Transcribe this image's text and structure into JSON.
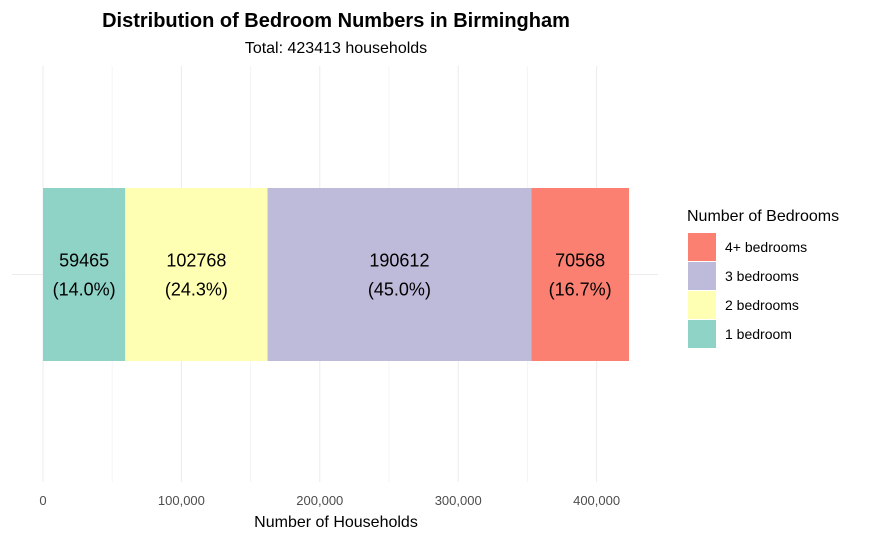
{
  "chart_data": {
    "type": "bar",
    "orientation": "horizontal",
    "stacked": true,
    "title": "Distribution of Bedroom Numbers in Birmingham",
    "subtitle": "Total: 423413 households",
    "xlabel": "Number of Households",
    "ylabel": "",
    "xlim": [
      0,
      423413
    ],
    "x_ticks": [
      0,
      100000,
      200000,
      300000,
      400000
    ],
    "x_tick_labels": [
      "0",
      "100,000",
      "200,000",
      "300,000",
      "400,000"
    ],
    "grid": true,
    "legend": {
      "title": "Number of Bedrooms",
      "placement": "right",
      "entries": [
        "4+ bedrooms",
        "3 bedrooms",
        "2 bedrooms",
        "1 bedroom"
      ]
    },
    "series": [
      {
        "name": "1 bedroom",
        "value": 59465,
        "value_label": "59465",
        "pct_label": "(14.0%)",
        "color": "#8fd3c7"
      },
      {
        "name": "2 bedrooms",
        "value": 102768,
        "value_label": "102768",
        "pct_label": "(24.3%)",
        "color": "#ffffb3"
      },
      {
        "name": "3 bedrooms",
        "value": 190612,
        "value_label": "190612",
        "pct_label": "(45.0%)",
        "color": "#bebad9"
      },
      {
        "name": "4+ bedrooms",
        "value": 70568,
        "value_label": "70568",
        "pct_label": "(16.7%)",
        "color": "#fb8072"
      }
    ]
  }
}
